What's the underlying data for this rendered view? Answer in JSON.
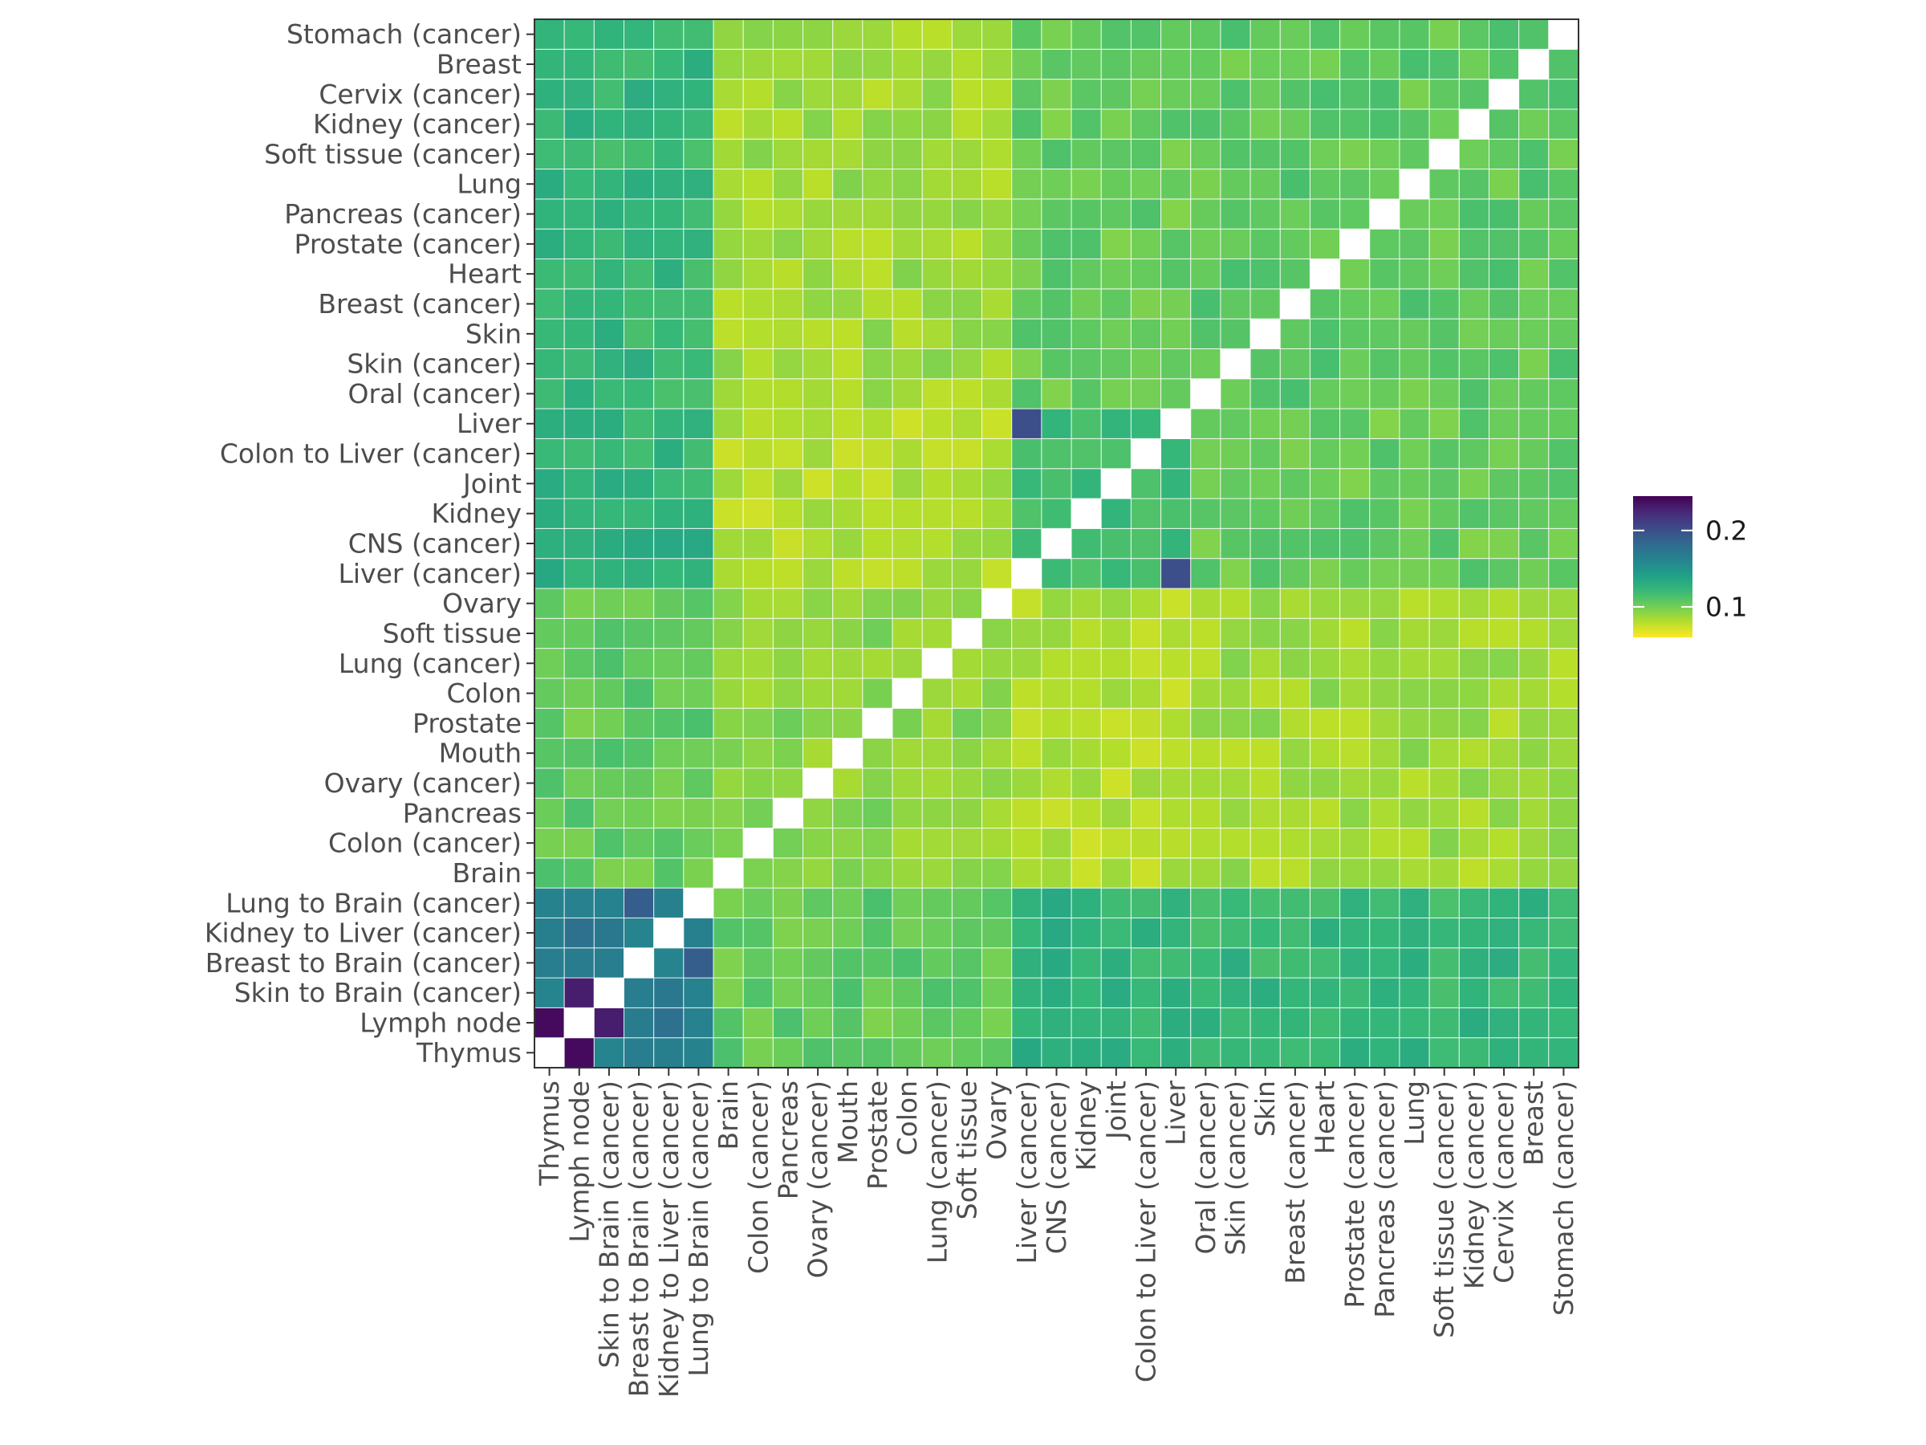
{
  "chart_data": {
    "type": "heatmap",
    "title": "",
    "xlabel": "",
    "ylabel": "",
    "labels": [
      "Thymus",
      "Lymph node",
      "Skin to Brain (cancer)",
      "Breast to Brain (cancer)",
      "Kidney to Liver (cancer)",
      "Lung to Brain (cancer)",
      "Brain",
      "Colon (cancer)",
      "Pancreas",
      "Ovary (cancer)",
      "Mouth",
      "Prostate",
      "Colon",
      "Lung (cancer)",
      "Soft tissue",
      "Ovary",
      "Liver (cancer)",
      "CNS (cancer)",
      "Kidney",
      "Joint",
      "Colon to Liver (cancer)",
      "Liver",
      "Oral (cancer)",
      "Skin (cancer)",
      "Skin",
      "Breast (cancer)",
      "Heart",
      "Prostate (cancer)",
      "Pancreas (cancer)",
      "Lung",
      "Soft tissue (cancer)",
      "Kidney (cancer)",
      "Cervix (cancer)",
      "Breast",
      "Stomach (cancer)"
    ],
    "x_order": "left to right as labels",
    "y_order": "bottom to top as labels",
    "diagonal": "blank (NA)",
    "colorscale": "viridis (reversed: high = dark purple, low = yellow)",
    "color_range": [
      0.06,
      0.245
    ],
    "legend": {
      "position": "right",
      "ticks": [
        0.1,
        0.2
      ],
      "tick_labels": [
        "0.1",
        "0.2"
      ]
    },
    "grid": true,
    "group_sizes": [
      6,
      10,
      6,
      13
    ],
    "group_block_means": [
      [
        0.17,
        0.105,
        0.125,
        0.122
      ],
      [
        0.105,
        0.093,
        0.081,
        0.087
      ],
      [
        0.125,
        0.081,
        0.119,
        0.104
      ],
      [
        0.122,
        0.087,
        0.104,
        0.106
      ]
    ],
    "notable_values": [
      {
        "x": "Thymus",
        "y": "Lymph node",
        "value": 0.24
      },
      {
        "x": "Lymph node",
        "y": "Skin to Brain (cancer)",
        "value": 0.23
      },
      {
        "x": "Liver (cancer)",
        "y": "Liver",
        "value": 0.2
      },
      {
        "x": "Breast to Brain (cancer)",
        "y": "Lung to Brain (cancer)",
        "value": 0.19
      }
    ]
  }
}
